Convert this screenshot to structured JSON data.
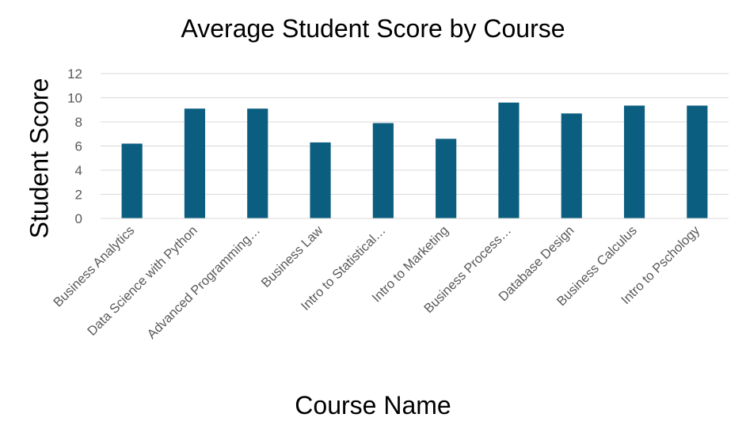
{
  "chart_data": {
    "type": "bar",
    "title": "Average Student Score by Course",
    "xlabel": "Course Name",
    "ylabel": "Student Score",
    "ylim": [
      0,
      12
    ],
    "yticks": [
      0,
      2,
      4,
      6,
      8,
      10,
      12
    ],
    "grid": true,
    "legend": "none",
    "bar_color": "#0B5E80",
    "categories": [
      "Business Analytics",
      "Data Science with Python",
      "Advanced Programming…",
      "Business Law",
      "Intro to Statistical…",
      "Intro to Marketing",
      "Business Process…",
      "Database Design",
      "Business Calculus",
      "Intro to Pschology"
    ],
    "values": [
      6.2,
      9.1,
      9.1,
      6.3,
      7.9,
      6.6,
      9.6,
      8.7,
      9.35,
      9.35
    ]
  }
}
